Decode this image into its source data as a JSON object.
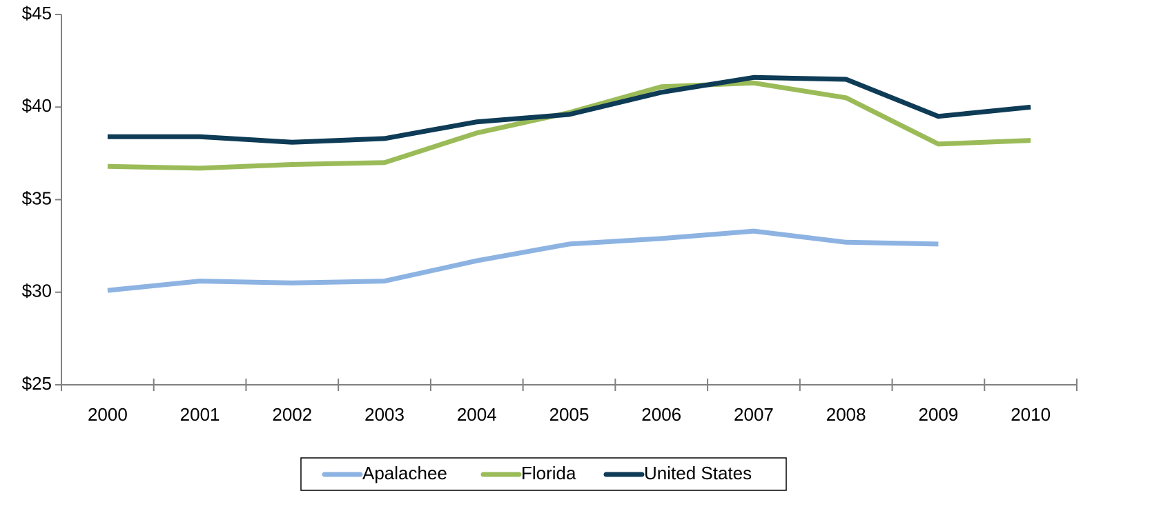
{
  "chart_data": {
    "type": "line",
    "categories": [
      "2000",
      "2001",
      "2002",
      "2003",
      "2004",
      "2005",
      "2006",
      "2007",
      "2008",
      "2009",
      "2010"
    ],
    "series": [
      {
        "name": "Apalachee",
        "color": "#8db3e2",
        "values": [
          30.1,
          30.6,
          30.5,
          30.6,
          31.7,
          32.6,
          32.9,
          33.3,
          32.7,
          32.6,
          null
        ]
      },
      {
        "name": "Florida",
        "color": "#9bbb59",
        "values": [
          36.8,
          36.7,
          36.9,
          37.0,
          38.6,
          39.7,
          41.1,
          41.3,
          40.5,
          38.0,
          38.2
        ]
      },
      {
        "name": "United States",
        "color": "#0e3b56",
        "values": [
          38.4,
          38.4,
          38.1,
          38.3,
          39.2,
          39.6,
          40.8,
          41.6,
          41.5,
          39.5,
          40.0
        ]
      }
    ],
    "ylim": [
      25,
      45
    ],
    "yticks": [
      {
        "value": 25,
        "label": "$25"
      },
      {
        "value": 30,
        "label": "$30"
      },
      {
        "value": 35,
        "label": "$35"
      },
      {
        "value": 40,
        "label": "$40"
      },
      {
        "value": 45,
        "label": "$45"
      }
    ],
    "legend": "bottom"
  }
}
